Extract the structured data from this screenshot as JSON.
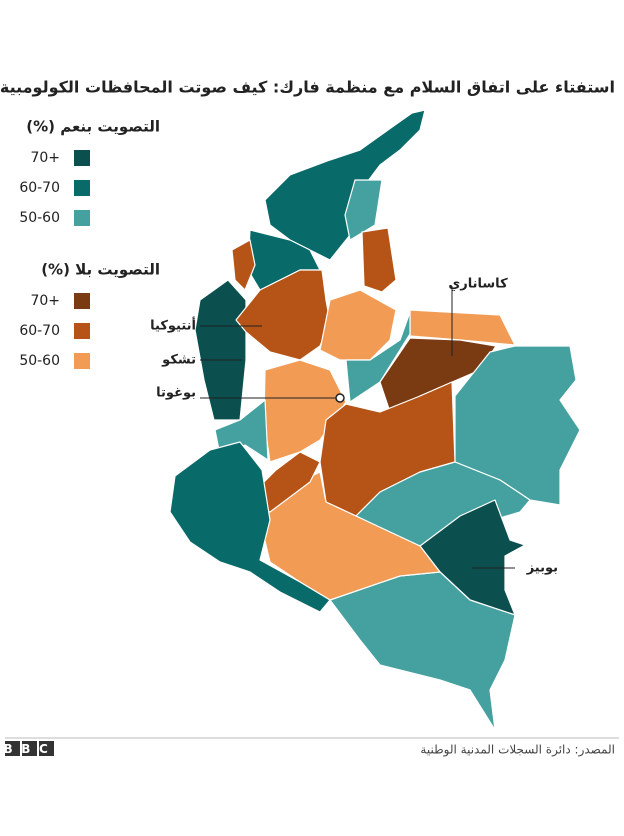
{
  "title": "استفتاء على اتفاق السلام مع منظمة فارك: كيف صوتت المحافظات الكولومبية",
  "legend_yes": {
    "title": "التصويت بنعم (%)",
    "items": [
      {
        "label": "70+",
        "color": "#0b4f4f"
      },
      {
        "label": "60-70",
        "color": "#086a69"
      },
      {
        "label": "50-60",
        "color": "#45a0a0"
      }
    ]
  },
  "legend_no": {
    "title": "التصويت بلا (%)",
    "items": [
      {
        "label": "70+",
        "color": "#7a3a12"
      },
      {
        "label": "60-70",
        "color": "#b55416"
      },
      {
        "label": "50-60",
        "color": "#f19b55"
      }
    ]
  },
  "places": [
    "كاساناري",
    "أنتيوكيا",
    "تشكو",
    "بوغوتا",
    "بوبيز"
  ],
  "logo": "BBC",
  "source": "المصدر: دائرة السجلات المدنية الوطنية"
}
